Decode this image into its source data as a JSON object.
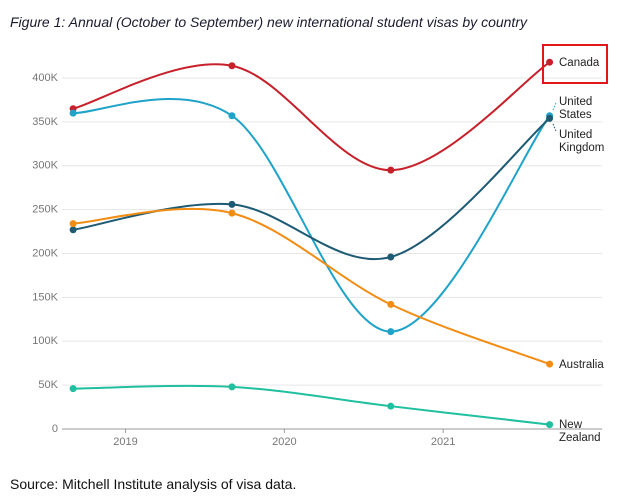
{
  "chart_data": {
    "type": "line",
    "title": "Figure 1: Annual (October to September) new international student visas by country",
    "source": "Source: Mitchell Institute analysis of visa data.",
    "x": [
      2018.67,
      2019.67,
      2020.67,
      2021.67
    ],
    "xlim": [
      2018.6,
      2022.0
    ],
    "xticks": [
      2019,
      2020,
      2021
    ],
    "ylim": [
      0,
      400000
    ],
    "yticks": [
      0,
      {
        "value": 50000,
        "label": "50K"
      },
      {
        "value": 100000,
        "label": "100K"
      },
      {
        "value": 150000,
        "label": "150K"
      },
      {
        "value": 200000,
        "label": "200K"
      },
      {
        "value": 250000,
        "label": "250K"
      },
      {
        "value": 300000,
        "label": "300K"
      },
      {
        "value": 350000,
        "label": "350K"
      },
      {
        "value": 400000,
        "label": "400K"
      }
    ],
    "grid": true,
    "series": [
      {
        "name": "Canada",
        "color": "#c8202a",
        "values": [
          365000,
          414000,
          295000,
          418000
        ]
      },
      {
        "name": "United States",
        "color": "#1fa3c9",
        "values": [
          360000,
          357000,
          111000,
          357000
        ]
      },
      {
        "name": "United Kingdom",
        "color": "#1d5a74",
        "values": [
          227000,
          256000,
          196000,
          354000
        ]
      },
      {
        "name": "Australia",
        "color": "#f28c12",
        "values": [
          234000,
          246000,
          142000,
          74000
        ]
      },
      {
        "name": "New Zealand",
        "color": "#1fbf9f",
        "values": [
          46000,
          48000,
          26000,
          5000
        ]
      }
    ]
  }
}
